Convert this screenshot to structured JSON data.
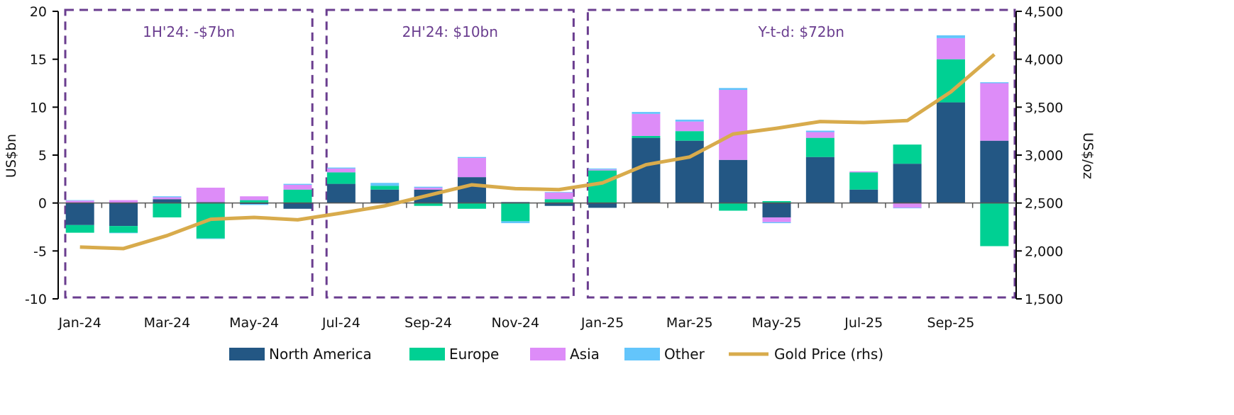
{
  "chart_data": {
    "type": "bar",
    "stacked": true,
    "categories": [
      "Jan-24",
      "Feb-24",
      "Mar-24",
      "Apr-24",
      "May-24",
      "Jun-24",
      "Jul-24",
      "Aug-24",
      "Sep-24",
      "Oct-24",
      "Nov-24",
      "Dec-24",
      "Jan-25",
      "Feb-25",
      "Mar-25",
      "Apr-25",
      "May-25",
      "Jun-25",
      "Jul-25",
      "Aug-25",
      "Sep-25",
      "Oct-25"
    ],
    "x_tick_labels": [
      "Jan-24",
      "Mar-24",
      "May-24",
      "Jul-24",
      "Sep-24",
      "Nov-24",
      "Jan-25",
      "Mar-25",
      "May-25",
      "Jul-25",
      "Sep-25"
    ],
    "ylabel": "US$bn",
    "ylabel_right": "US$/oz",
    "ylim": [
      -10,
      20
    ],
    "yticks": [
      -10,
      -5,
      0,
      5,
      10,
      15,
      20
    ],
    "ylim_right": [
      1500,
      4500
    ],
    "yticks_right": [
      "1,500",
      "2,000",
      "2,500",
      "3,000",
      "3,500",
      "4,000",
      "4,500"
    ],
    "series": [
      {
        "name": "North America",
        "color": "#235784",
        "values": [
          -2.3,
          -2.4,
          0.4,
          0.1,
          -0.1,
          -0.6,
          2.0,
          1.4,
          1.4,
          2.7,
          0.1,
          -0.3,
          -0.5,
          6.8,
          6.5,
          4.5,
          -1.5,
          4.8,
          1.4,
          4.1,
          10.5,
          6.5
        ]
      },
      {
        "name": "Europe",
        "color": "#00d093",
        "values": [
          -0.8,
          -0.7,
          -1.5,
          -3.7,
          0.3,
          1.4,
          1.2,
          0.4,
          -0.3,
          -0.6,
          -1.9,
          0.4,
          3.4,
          0.2,
          1.0,
          -0.8,
          0.2,
          2.0,
          1.8,
          2.0,
          4.5,
          -4.5
        ]
      },
      {
        "name": "Asia",
        "color": "#dd8cf8",
        "values": [
          0.25,
          0.3,
          0.2,
          1.5,
          0.4,
          0.5,
          0.4,
          0.0,
          0.2,
          2.0,
          0.0,
          0.7,
          0.1,
          2.3,
          1.0,
          7.3,
          -0.5,
          0.6,
          0.1,
          -0.5,
          2.2,
          6.0
        ]
      },
      {
        "name": "Other",
        "color": "#63c5fb",
        "values": [
          0.05,
          -0.05,
          0.1,
          -0.05,
          -0.1,
          0.1,
          0.1,
          0.3,
          0.1,
          0.1,
          -0.2,
          0.05,
          0.1,
          0.2,
          0.2,
          0.2,
          -0.1,
          0.15,
          -0.05,
          -0.05,
          0.3,
          0.1
        ]
      }
    ],
    "line_series": {
      "name": "Gold Price (rhs)",
      "color": "#d8ab4c",
      "axis": "right",
      "values": [
        2040,
        2025,
        2160,
        2330,
        2350,
        2325,
        2395,
        2470,
        2580,
        2690,
        2650,
        2640,
        2710,
        2900,
        2980,
        3220,
        3280,
        3350,
        3340,
        3360,
        3660,
        4050
      ]
    },
    "annotations": [
      {
        "label": "1H'24: -$7bn",
        "from": "Jan-24",
        "to": "Jun-24"
      },
      {
        "label": "2H'24: $10bn",
        "from": "Jul-24",
        "to": "Dec-24"
      },
      {
        "label": "Y-t-d: $72bn",
        "from": "Jan-25",
        "to": "Oct-25"
      }
    ],
    "annotation_color": "#6a3d8f",
    "legend_position": "bottom"
  }
}
